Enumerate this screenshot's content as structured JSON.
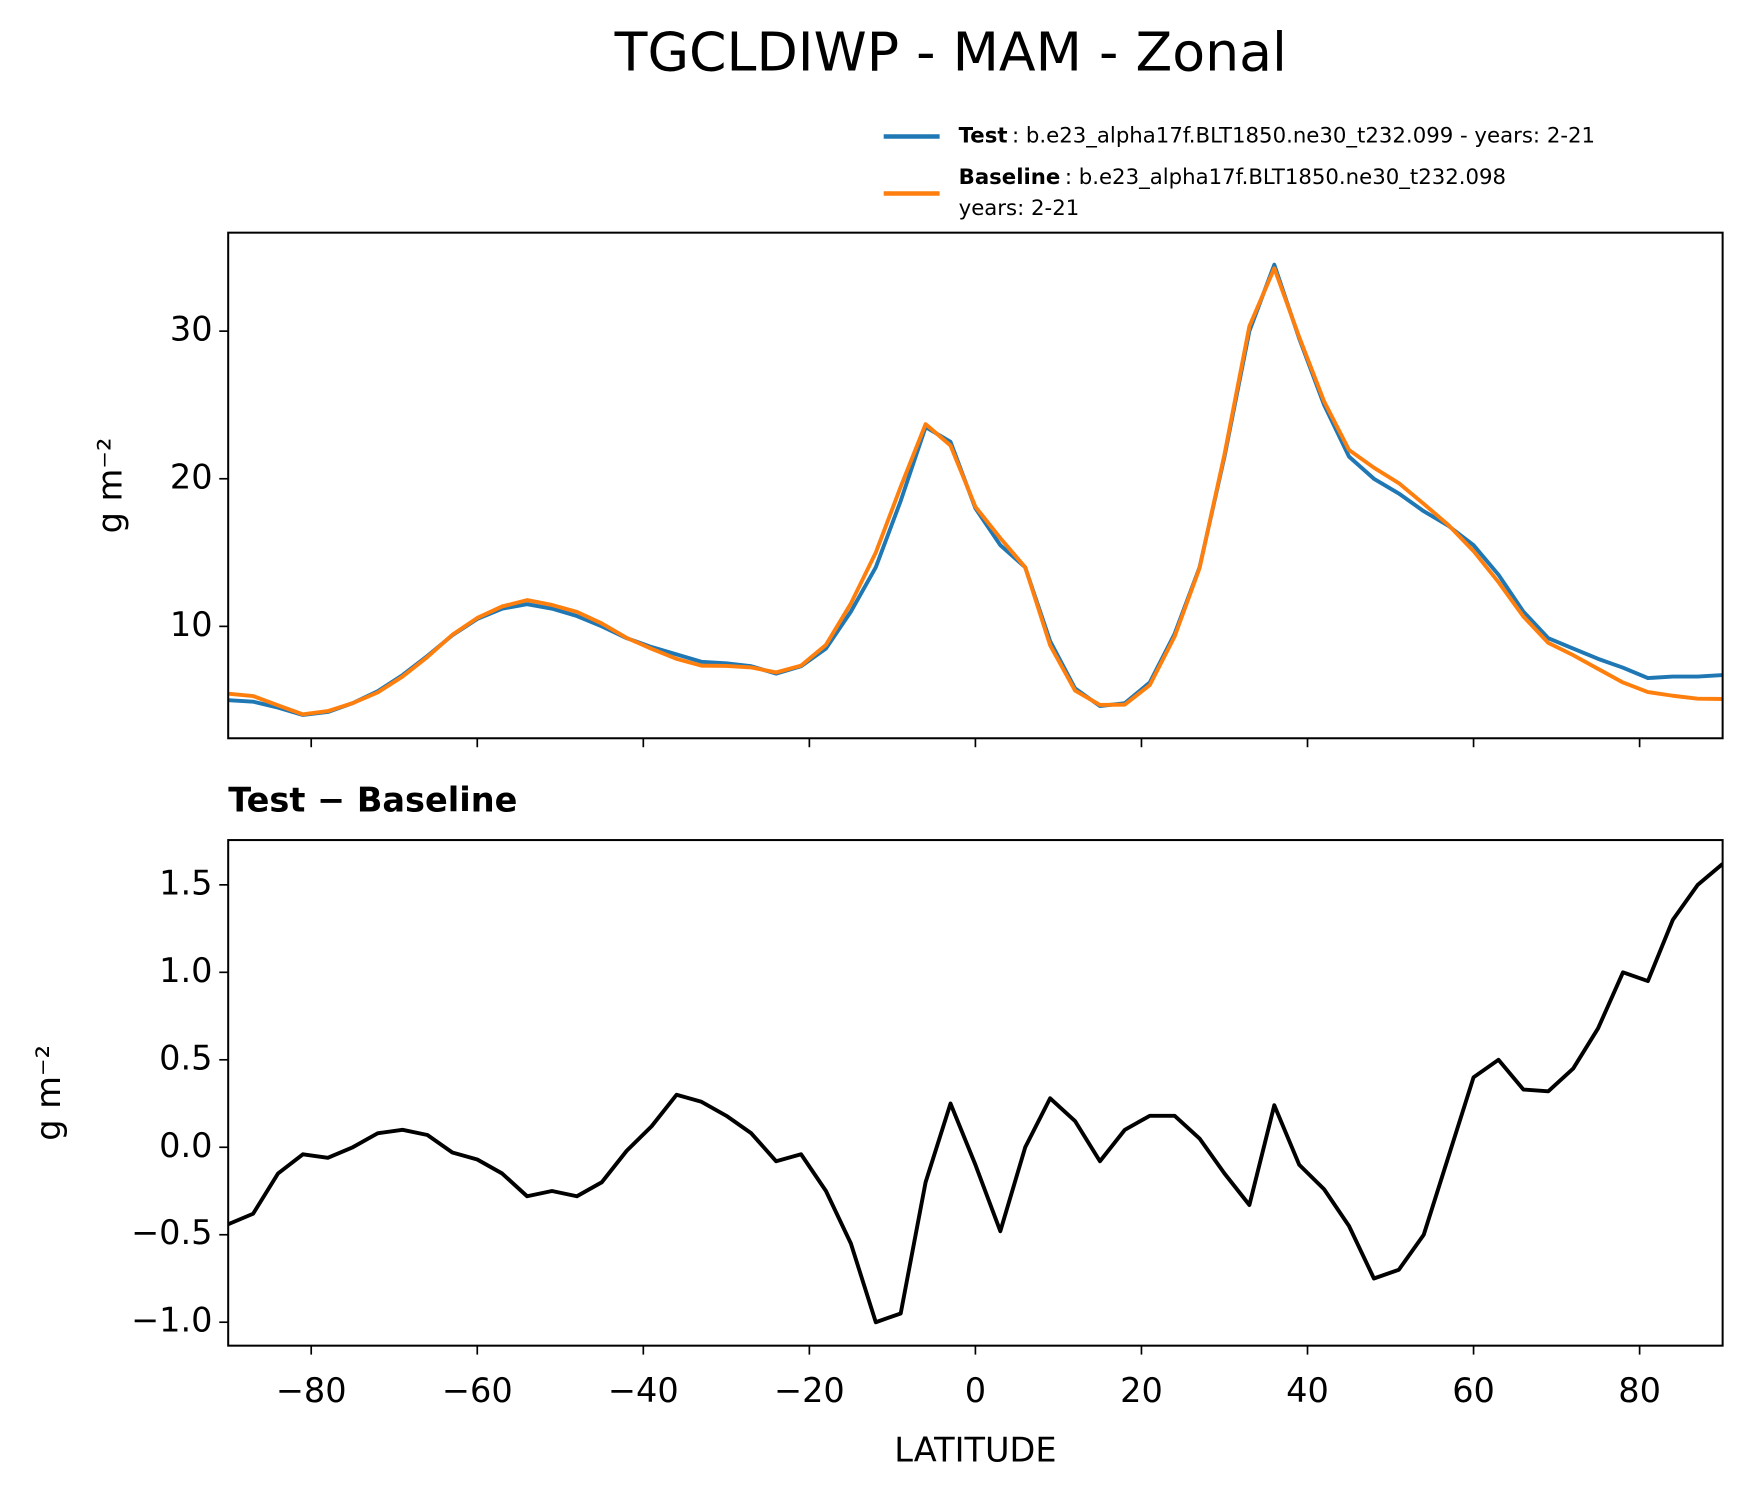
{
  "title": "TGCLDIWP - MAM - Zonal",
  "chart_data": [
    {
      "type": "line",
      "ylabel": "g m⁻²",
      "x": [
        -90,
        -87,
        -84,
        -81,
        -78,
        -75,
        -72,
        -69,
        -66,
        -63,
        -60,
        -57,
        -54,
        -51,
        -48,
        -45,
        -42,
        -39,
        -36,
        -33,
        -30,
        -27,
        -24,
        -21,
        -18,
        -15,
        -12,
        -9,
        -6,
        -3,
        0,
        3,
        6,
        9,
        12,
        15,
        18,
        21,
        24,
        27,
        30,
        33,
        36,
        39,
        42,
        45,
        48,
        51,
        54,
        57,
        60,
        63,
        66,
        69,
        72,
        75,
        78,
        81,
        84,
        87,
        90
      ],
      "series": [
        {
          "name": "Test",
          "label": [
            ": b.e23_alpha17f.BLT1850.ne30_t232.099 - years: 2-21"
          ],
          "color": "#1f77b4",
          "values": [
            5.0,
            4.9,
            4.5,
            4.0,
            4.2,
            4.8,
            5.6,
            6.7,
            8.0,
            9.4,
            10.5,
            11.2,
            11.5,
            11.2,
            10.7,
            10.0,
            9.2,
            8.6,
            8.1,
            7.6,
            7.5,
            7.3,
            6.8,
            7.3,
            8.5,
            11.0,
            14.0,
            18.5,
            23.5,
            22.5,
            18.0,
            15.5,
            14.0,
            9.0,
            5.8,
            4.6,
            4.8,
            6.2,
            9.5,
            14.0,
            21.5,
            30.0,
            34.5,
            29.5,
            25.0,
            21.5,
            20.0,
            19.0,
            17.8,
            16.8,
            15.5,
            13.5,
            11.0,
            9.2,
            8.5,
            7.8,
            7.2,
            6.5,
            6.6,
            6.6,
            6.7
          ]
        },
        {
          "name": "Baseline",
          "label": [
            ": b.e23_alpha17f.BLT1850.ne30_t232.098",
            "years: 2-21"
          ],
          "color": "#ff7f0e",
          "values": [
            5.44,
            5.28,
            4.65,
            4.04,
            4.26,
            4.8,
            5.52,
            6.6,
            7.93,
            9.43,
            10.57,
            11.35,
            11.78,
            11.45,
            10.98,
            10.2,
            9.22,
            8.48,
            7.8,
            7.34,
            7.32,
            7.22,
            6.88,
            7.34,
            8.75,
            11.55,
            15.0,
            19.45,
            23.7,
            22.25,
            18.1,
            15.98,
            14.0,
            8.72,
            5.65,
            4.68,
            4.7,
            6.02,
            9.32,
            13.95,
            21.65,
            30.33,
            34.26,
            29.6,
            25.24,
            21.95,
            20.75,
            19.7,
            18.3,
            16.85,
            15.1,
            13.0,
            10.67,
            8.88,
            8.05,
            7.12,
            6.2,
            5.55,
            5.3,
            5.1,
            5.08
          ]
        }
      ],
      "xlim": [
        -90,
        90
      ],
      "xticks": [
        {
          "value": -80,
          "label": "−80"
        },
        {
          "value": -60,
          "label": "−60"
        },
        {
          "value": -40,
          "label": "−40"
        },
        {
          "value": -20,
          "label": "−20"
        },
        0,
        20,
        40,
        60,
        80
      ],
      "xticklabels": false,
      "ylim": [
        2.42,
        36.67
      ],
      "yticks": [
        10,
        20,
        30
      ],
      "legend": "upper right"
    },
    {
      "type": "line",
      "title": "Test − Baseline",
      "xlabel": "LATITUDE",
      "ylabel": "g m⁻²",
      "x": [
        -90,
        -87,
        -84,
        -81,
        -78,
        -75,
        -72,
        -69,
        -66,
        -63,
        -60,
        -57,
        -54,
        -51,
        -48,
        -45,
        -42,
        -39,
        -36,
        -33,
        -30,
        -27,
        -24,
        -21,
        -18,
        -15,
        -12,
        -9,
        -6,
        -3,
        0,
        3,
        6,
        9,
        12,
        15,
        18,
        21,
        24,
        27,
        30,
        33,
        36,
        39,
        42,
        45,
        48,
        51,
        54,
        57,
        60,
        63,
        66,
        69,
        72,
        75,
        78,
        81,
        84,
        87,
        90
      ],
      "color": "#000000",
      "values": [
        -0.44,
        -0.38,
        -0.15,
        -0.04,
        -0.06,
        0.0,
        0.08,
        0.1,
        0.07,
        -0.03,
        -0.07,
        -0.15,
        -0.28,
        -0.25,
        -0.28,
        -0.2,
        -0.02,
        0.12,
        0.3,
        0.26,
        0.18,
        0.08,
        -0.08,
        -0.04,
        -0.25,
        -0.55,
        -1.0,
        -0.95,
        -0.2,
        0.25,
        -0.1,
        -0.48,
        0.0,
        0.28,
        0.15,
        -0.08,
        0.1,
        0.18,
        0.18,
        0.05,
        -0.15,
        -0.33,
        0.24,
        -0.1,
        -0.24,
        -0.45,
        -0.75,
        -0.7,
        -0.5,
        -0.05,
        0.4,
        0.5,
        0.33,
        0.32,
        0.45,
        0.68,
        1.0,
        0.95,
        1.3,
        1.5,
        1.62
      ],
      "xlim": [
        -90,
        90
      ],
      "xticks": [
        {
          "value": -80,
          "label": "−80"
        },
        {
          "value": -60,
          "label": "−60"
        },
        {
          "value": -40,
          "label": "−40"
        },
        {
          "value": -20,
          "label": "−20"
        },
        0,
        20,
        40,
        60,
        80
      ],
      "xticklabels": true,
      "ylim": [
        -1.134,
        1.756
      ],
      "yticks": [
        {
          "value": -1.0,
          "label": "−1.0"
        },
        {
          "value": -0.5,
          "label": "−0.5"
        },
        {
          "value": 0.0,
          "label": "0.0"
        },
        {
          "value": 0.5,
          "label": "0.5"
        },
        {
          "value": 1.0,
          "label": "1.0"
        },
        {
          "value": 1.5,
          "label": "1.5"
        }
      ]
    }
  ]
}
